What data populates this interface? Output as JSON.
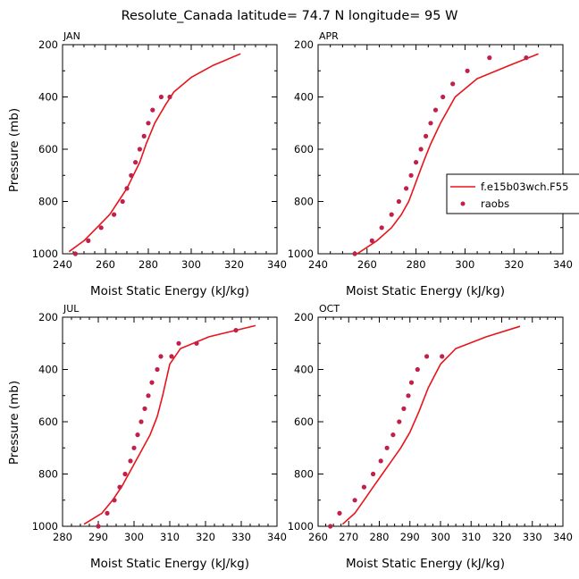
{
  "figure": {
    "title": "Resolute_Canada   latitude= 74.7 N longitude= 95 W",
    "model_color": "#e8141c",
    "obs_color": "#c0204a",
    "axis_color": "#000000"
  },
  "legend": {
    "panel": "APR",
    "model_label": "f.e15b03wch.F55",
    "obs_label": "raobs"
  },
  "chart_data": [
    {
      "type": "line",
      "panel_label": "JAN",
      "title": "",
      "xlabel": "Moist Static Energy (kJ/kg)",
      "ylabel": "Pressure (mb)",
      "xlim": [
        240,
        340
      ],
      "ylim": [
        200,
        1000
      ],
      "y_inverted": true,
      "xticks": [
        240,
        260,
        280,
        300,
        320,
        340
      ],
      "yticks": [
        200,
        400,
        600,
        800,
        1000
      ],
      "series": [
        {
          "name": "f.e15b03wch.F55",
          "kind": "line",
          "x": [
            243,
            250,
            256,
            262,
            266,
            270,
            273,
            276,
            279,
            283,
            288,
            292,
            300,
            310,
            323
          ],
          "y": [
            992,
            950,
            900,
            850,
            800,
            750,
            700,
            650,
            580,
            500,
            430,
            380,
            325,
            280,
            235
          ]
        },
        {
          "name": "raobs",
          "kind": "scatter",
          "x": [
            246,
            252,
            258,
            264,
            268,
            270,
            272,
            274,
            276,
            278,
            280,
            282,
            286,
            290
          ],
          "y": [
            1000,
            950,
            900,
            850,
            800,
            750,
            700,
            650,
            600,
            550,
            500,
            450,
            400,
            400
          ]
        }
      ]
    },
    {
      "type": "line",
      "panel_label": "APR",
      "title": "",
      "xlabel": "Moist Static Energy (kJ/kg)",
      "ylabel": "",
      "xlim": [
        240,
        340
      ],
      "ylim": [
        200,
        1000
      ],
      "y_inverted": true,
      "xticks": [
        240,
        260,
        280,
        300,
        320,
        340
      ],
      "yticks": [
        200,
        400,
        600,
        800,
        1000
      ],
      "series": [
        {
          "name": "f.e15b03wch.F55",
          "kind": "line",
          "x": [
            256,
            264,
            270,
            274,
            277,
            279,
            281,
            283,
            286,
            290,
            296,
            305,
            318,
            330
          ],
          "y": [
            1000,
            950,
            900,
            850,
            800,
            750,
            700,
            650,
            580,
            500,
            400,
            330,
            280,
            235
          ]
        },
        {
          "name": "raobs",
          "kind": "scatter",
          "x": [
            255,
            262,
            266,
            270,
            273,
            276,
            278,
            280,
            282,
            284,
            286,
            288,
            291,
            295,
            301,
            310,
            325
          ],
          "y": [
            1000,
            950,
            900,
            850,
            800,
            750,
            700,
            650,
            600,
            550,
            500,
            450,
            400,
            350,
            300,
            250,
            250
          ]
        }
      ]
    },
    {
      "type": "line",
      "panel_label": "JUL",
      "title": "",
      "xlabel": "Moist Static Energy (kJ/kg)",
      "ylabel": "Pressure (mb)",
      "xlim": [
        280,
        340
      ],
      "ylim": [
        200,
        1000
      ],
      "y_inverted": true,
      "xticks": [
        280,
        290,
        300,
        310,
        320,
        330,
        340
      ],
      "yticks": [
        200,
        400,
        600,
        800,
        1000
      ],
      "series": [
        {
          "name": "f.e15b03wch.F55",
          "kind": "line",
          "x": [
            286,
            291,
            294,
            296.5,
            298.5,
            300.5,
            302.5,
            304.5,
            306.5,
            308,
            310,
            313,
            321,
            334
          ],
          "y": [
            992,
            950,
            900,
            850,
            800,
            750,
            700,
            650,
            580,
            500,
            380,
            320,
            275,
            232
          ]
        },
        {
          "name": "raobs",
          "kind": "scatter",
          "x": [
            290,
            292.5,
            294.5,
            296,
            297.5,
            299,
            300,
            301,
            302,
            303,
            304,
            305,
            306.5,
            307.5,
            310.5,
            312.5,
            317.5,
            328.5
          ],
          "y": [
            1000,
            950,
            900,
            850,
            800,
            750,
            700,
            650,
            600,
            550,
            500,
            450,
            400,
            350,
            350,
            300,
            300,
            250
          ]
        }
      ]
    },
    {
      "type": "line",
      "panel_label": "OCT",
      "title": "",
      "xlabel": "Moist Static Energy (kJ/kg)",
      "ylabel": "",
      "xlim": [
        260,
        340
      ],
      "ylim": [
        200,
        1000
      ],
      "y_inverted": true,
      "xticks": [
        260,
        270,
        280,
        290,
        300,
        310,
        320,
        330,
        340
      ],
      "yticks": [
        200,
        400,
        600,
        800,
        1000
      ],
      "series": [
        {
          "name": "f.e15b03wch.F55",
          "kind": "line",
          "x": [
            268,
            272,
            275,
            278,
            281,
            284,
            287,
            290,
            293,
            296,
            300,
            305,
            315,
            326
          ],
          "y": [
            992,
            950,
            900,
            850,
            800,
            750,
            700,
            640,
            560,
            470,
            380,
            320,
            275,
            235
          ]
        },
        {
          "name": "raobs",
          "kind": "scatter",
          "x": [
            264,
            267,
            272,
            275,
            278,
            280.5,
            282.5,
            284.5,
            286.5,
            288,
            289.5,
            290.5,
            292.5,
            295.5,
            300.5
          ],
          "y": [
            1000,
            950,
            900,
            850,
            800,
            750,
            700,
            650,
            600,
            550,
            500,
            450,
            400,
            350,
            350
          ]
        }
      ]
    }
  ]
}
